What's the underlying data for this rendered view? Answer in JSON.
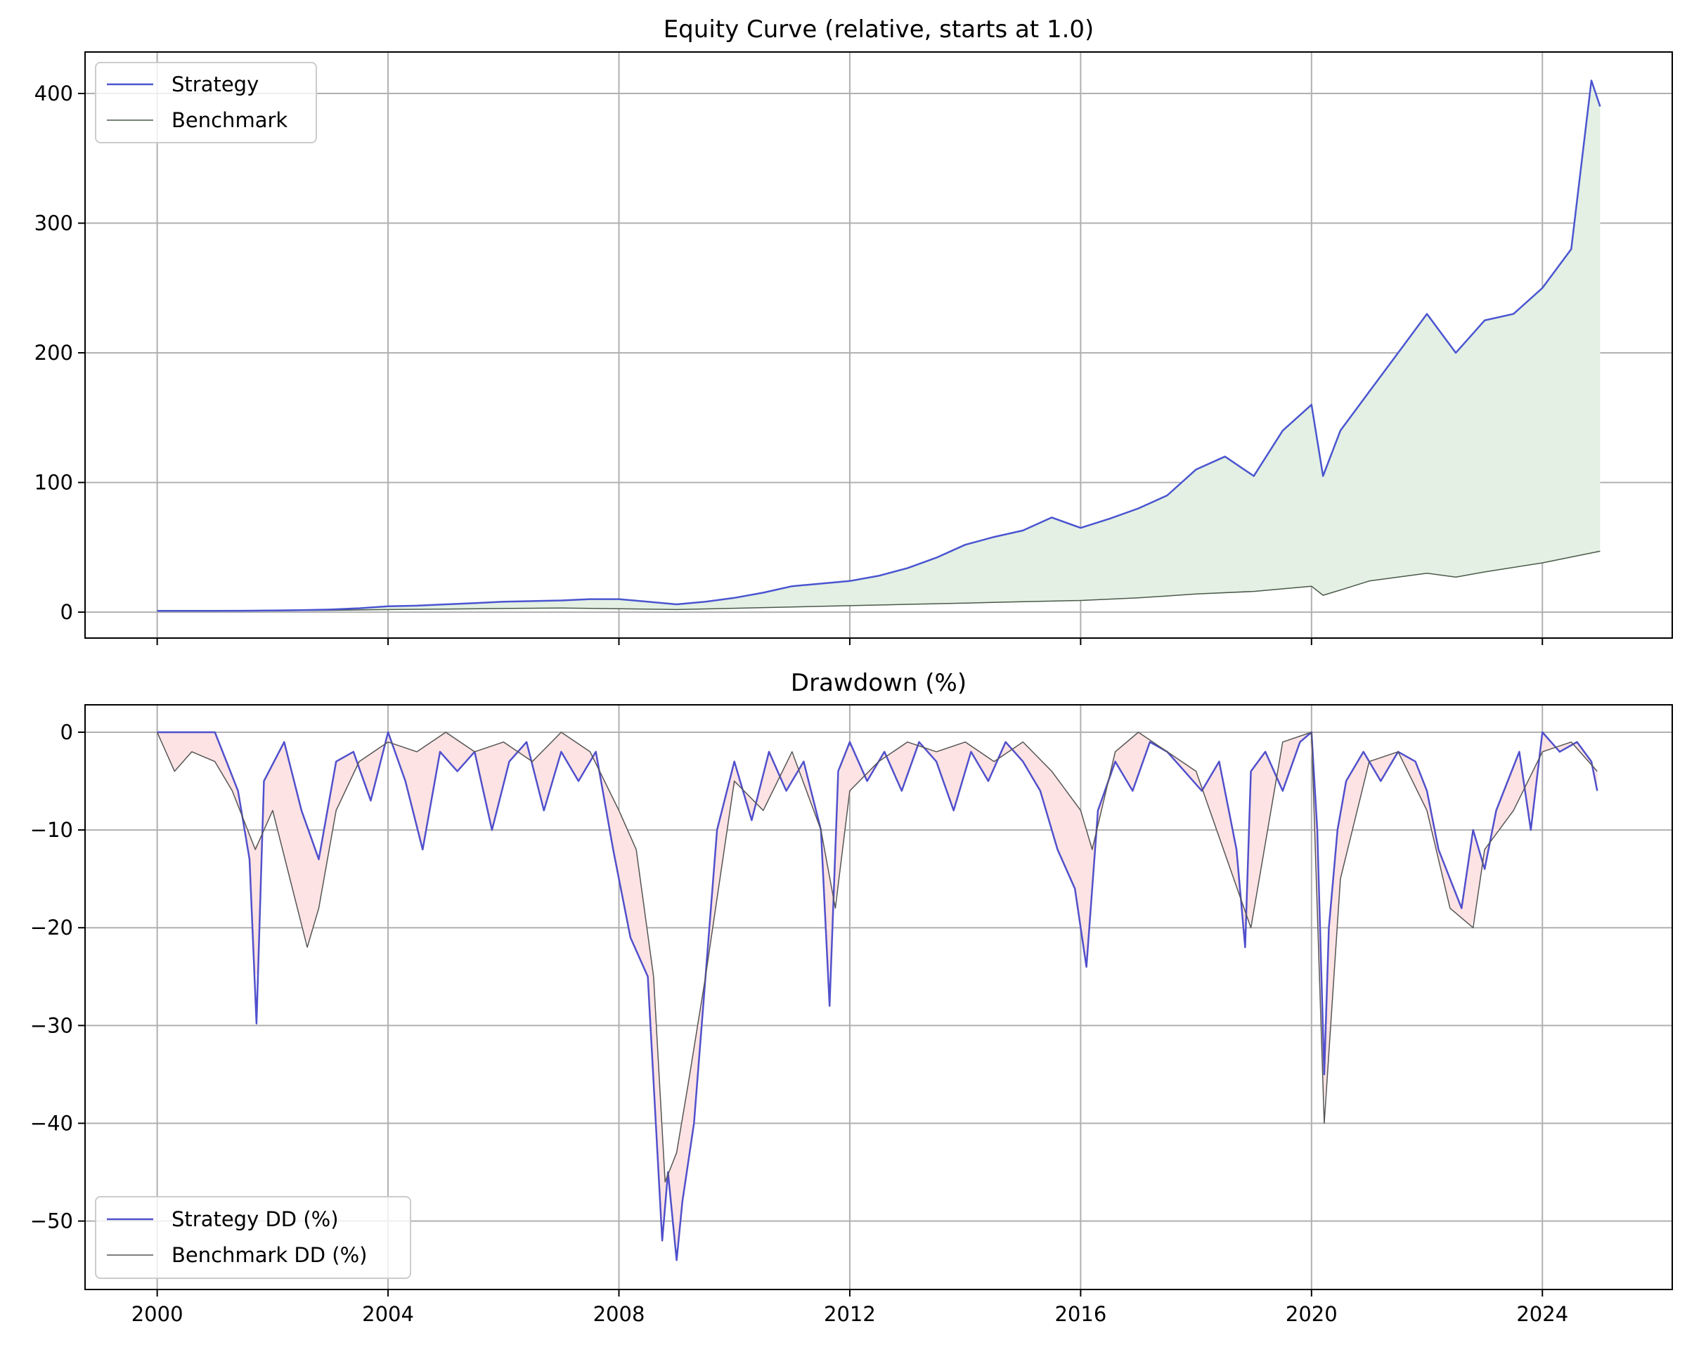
{
  "chart_data": [
    {
      "type": "line",
      "title": "Equity Curve (relative, starts at 1.0)",
      "xlabel": "",
      "ylabel": "",
      "x_range": [
        1998.75,
        2026.25
      ],
      "ylim": [
        -20,
        432
      ],
      "yticks": [
        0,
        100,
        200,
        300,
        400
      ],
      "xticks": [
        2000,
        2004,
        2008,
        2012,
        2016,
        2020,
        2024
      ],
      "xtick_labels_shown": false,
      "grid": true,
      "legend_position": "top-left",
      "fill_between_series": {
        "color": "#e3f0e3"
      },
      "series": [
        {
          "name": "Strategy",
          "color": "#4a55d0",
          "x": [
            2000,
            2000.5,
            2001,
            2001.5,
            2002,
            2002.5,
            2003,
            2003.5,
            2004,
            2004.5,
            2005,
            2005.5,
            2006,
            2006.5,
            2007,
            2007.5,
            2008,
            2008.5,
            2009,
            2009.5,
            2010,
            2010.5,
            2011,
            2011.5,
            2012,
            2012.5,
            2013,
            2013.5,
            2014,
            2014.5,
            2015,
            2015.5,
            2016,
            2016.5,
            2017,
            2017.5,
            2018,
            2018.5,
            2019,
            2019.5,
            2020,
            2020.2,
            2020.5,
            2021,
            2021.5,
            2022,
            2022.5,
            2023,
            2023.5,
            2024,
            2024.5,
            2024.85,
            2025
          ],
          "values": [
            1,
            1,
            1,
            1.1,
            1.3,
            1.5,
            2,
            3,
            4.5,
            5,
            6,
            7,
            8,
            8.5,
            9,
            10,
            10,
            8,
            6,
            8,
            11,
            15,
            20,
            22,
            24,
            28,
            34,
            42,
            52,
            58,
            63,
            73,
            65,
            72,
            80,
            90,
            110,
            120,
            105,
            140,
            160,
            105,
            140,
            170,
            200,
            230,
            200,
            225,
            230,
            250,
            280,
            410,
            390
          ]
        },
        {
          "name": "Benchmark",
          "color": "#4a5a4a",
          "x": [
            2000,
            2001,
            2002,
            2003,
            2004,
            2005,
            2006,
            2007,
            2008,
            2009,
            2010,
            2011,
            2012,
            2013,
            2014,
            2015,
            2016,
            2017,
            2018,
            2019,
            2020,
            2020.2,
            2020.5,
            2021,
            2022,
            2022.5,
            2023,
            2024,
            2025
          ],
          "values": [
            1,
            1,
            1.1,
            1.4,
            2,
            2.4,
            2.8,
            3.2,
            2.6,
            2,
            3,
            4,
            5,
            6,
            7,
            8,
            9,
            11,
            14,
            16,
            20,
            13,
            17,
            24,
            30,
            27,
            31,
            38,
            47
          ]
        }
      ]
    },
    {
      "type": "line",
      "title": "Drawdown (%)",
      "xlabel": "",
      "ylabel": "",
      "x_range": [
        1998.75,
        2026.25
      ],
      "ylim": [
        -57,
        2.8
      ],
      "yticks": [
        0,
        -10,
        -20,
        -30,
        -40,
        -50
      ],
      "xticks": [
        2000,
        2004,
        2008,
        2012,
        2016,
        2020,
        2024
      ],
      "xtick_labels": [
        "2000",
        "2004",
        "2008",
        "2012",
        "2016",
        "2020",
        "2024"
      ],
      "grid": true,
      "legend_position": "bottom-left",
      "fill_between_series": {
        "color": "#fde3e3"
      },
      "series": [
        {
          "name": "Strategy DD (%)",
          "color": "#5050cc",
          "x": [
            2000,
            2001,
            2001.2,
            2001.4,
            2001.6,
            2001.72,
            2001.85,
            2002.2,
            2002.5,
            2002.8,
            2003.1,
            2003.4,
            2003.7,
            2004,
            2004.3,
            2004.6,
            2004.9,
            2005.2,
            2005.5,
            2005.8,
            2006.1,
            2006.4,
            2006.7,
            2007,
            2007.3,
            2007.6,
            2007.9,
            2008.2,
            2008.5,
            2008.75,
            2008.85,
            2009,
            2009.1,
            2009.3,
            2009.5,
            2009.7,
            2010,
            2010.3,
            2010.6,
            2010.9,
            2011.2,
            2011.5,
            2011.65,
            2011.8,
            2012,
            2012.3,
            2012.6,
            2012.9,
            2013.2,
            2013.5,
            2013.8,
            2014.1,
            2014.4,
            2014.7,
            2015,
            2015.3,
            2015.6,
            2015.9,
            2016.1,
            2016.3,
            2016.6,
            2016.9,
            2017.2,
            2017.5,
            2017.8,
            2018.1,
            2018.4,
            2018.7,
            2018.85,
            2018.95,
            2019.2,
            2019.5,
            2019.8,
            2020,
            2020.1,
            2020.22,
            2020.3,
            2020.45,
            2020.6,
            2020.9,
            2021.2,
            2021.5,
            2021.8,
            2022,
            2022.2,
            2022.4,
            2022.6,
            2022.8,
            2023,
            2023.2,
            2023.4,
            2023.6,
            2023.8,
            2024,
            2024.3,
            2024.6,
            2024.85,
            2024.95
          ],
          "values": [
            0,
            0,
            -3,
            -6,
            -13,
            -29.8,
            -5,
            -1,
            -8,
            -13,
            -3,
            -2,
            -7,
            0,
            -5,
            -12,
            -2,
            -4,
            -2,
            -10,
            -3,
            -1,
            -8,
            -2,
            -5,
            -2,
            -12,
            -21,
            -25,
            -52,
            -45,
            -54,
            -48,
            -40,
            -25,
            -10,
            -3,
            -9,
            -2,
            -6,
            -3,
            -10,
            -28,
            -4,
            -1,
            -5,
            -2,
            -6,
            -1,
            -3,
            -8,
            -2,
            -5,
            -1,
            -3,
            -6,
            -12,
            -16,
            -24,
            -8,
            -3,
            -6,
            -1,
            -2,
            -4,
            -6,
            -3,
            -12,
            -22,
            -4,
            -2,
            -6,
            -1,
            0,
            -10,
            -35,
            -20,
            -10,
            -5,
            -2,
            -5,
            -2,
            -3,
            -6,
            -12,
            -15,
            -18,
            -10,
            -14,
            -8,
            -5,
            -2,
            -10,
            0,
            -2,
            -1,
            -3,
            -6
          ]
        },
        {
          "name": "Benchmark DD (%)",
          "color": "#555555",
          "x": [
            2000,
            2000.3,
            2000.6,
            2001,
            2001.3,
            2001.7,
            2002,
            2002.3,
            2002.6,
            2002.8,
            2003.1,
            2003.5,
            2004,
            2004.5,
            2005,
            2005.5,
            2006,
            2006.5,
            2007,
            2007.5,
            2008,
            2008.3,
            2008.6,
            2008.8,
            2009,
            2009.2,
            2009.5,
            2010,
            2010.5,
            2011,
            2011.5,
            2011.75,
            2012,
            2012.5,
            2013,
            2013.5,
            2014,
            2014.5,
            2015,
            2015.5,
            2016,
            2016.2,
            2016.6,
            2017,
            2018,
            2018.95,
            2019.5,
            2020,
            2020.22,
            2020.5,
            2021,
            2021.5,
            2022,
            2022.4,
            2022.8,
            2023,
            2023.5,
            2024,
            2024.5,
            2024.95
          ],
          "values": [
            0,
            -4,
            -2,
            -3,
            -6,
            -12,
            -8,
            -15,
            -22,
            -18,
            -8,
            -3,
            -1,
            -2,
            0,
            -2,
            -1,
            -3,
            0,
            -2,
            -8,
            -12,
            -25,
            -46,
            -43,
            -36,
            -25,
            -5,
            -8,
            -2,
            -10,
            -18,
            -6,
            -3,
            -1,
            -2,
            -1,
            -3,
            -1,
            -4,
            -8,
            -12,
            -2,
            0,
            -4,
            -20,
            -1,
            0,
            -40,
            -15,
            -3,
            -2,
            -8,
            -18,
            -20,
            -12,
            -8,
            -2,
            -1,
            -4
          ]
        }
      ]
    }
  ]
}
